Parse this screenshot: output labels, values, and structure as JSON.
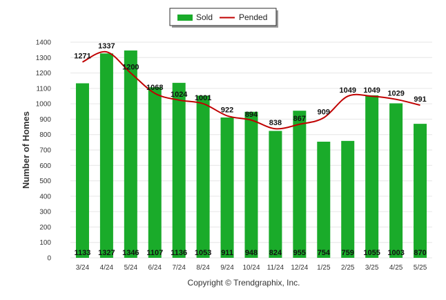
{
  "chart_data": {
    "type": "bar",
    "categories": [
      "3/24",
      "4/24",
      "5/24",
      "6/24",
      "7/24",
      "8/24",
      "9/24",
      "10/24",
      "11/24",
      "12/24",
      "1/25",
      "2/25",
      "3/25",
      "4/25",
      "5/25"
    ],
    "series": [
      {
        "name": "Sold",
        "type": "bar",
        "color": "#1aab2a",
        "values": [
          1133,
          1327,
          1346,
          1107,
          1136,
          1053,
          911,
          948,
          824,
          955,
          754,
          759,
          1055,
          1003,
          870
        ]
      },
      {
        "name": "Pended",
        "type": "line",
        "color": "#c00000",
        "values": [
          1271,
          1337,
          1200,
          1068,
          1024,
          1001,
          922,
          894,
          838,
          867,
          909,
          1049,
          1049,
          1029,
          991
        ]
      }
    ],
    "ylabel": "Number of Homes",
    "xlabel": "",
    "ylim": [
      0,
      1400
    ],
    "yticks": [
      0,
      100,
      200,
      300,
      400,
      500,
      600,
      700,
      800,
      900,
      1000,
      1100,
      1200,
      1300,
      1400
    ],
    "grid": true,
    "legend_position": "top-center",
    "copyright": "Copyright © Trendgraphix, Inc."
  }
}
